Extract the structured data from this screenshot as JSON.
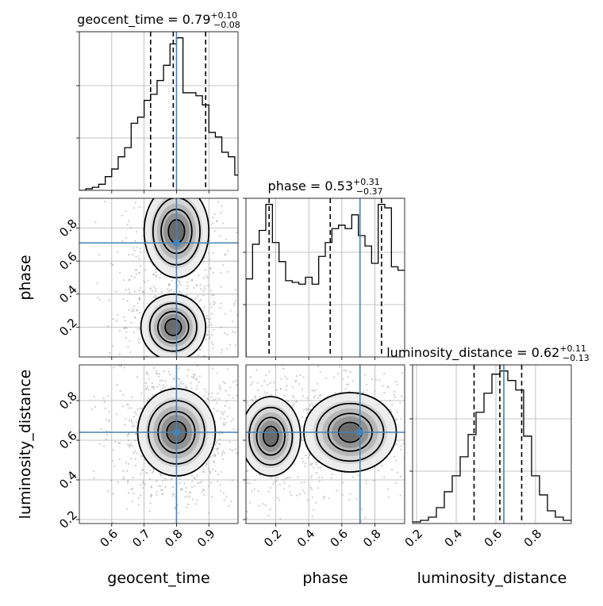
{
  "chart_data": {
    "type": "corner",
    "parameters": [
      "geocent_time",
      "phase",
      "luminosity_distance"
    ],
    "ranges": [
      [
        0.5,
        0.99
      ],
      [
        0.02,
        0.98
      ],
      [
        0.18,
        0.98
      ]
    ],
    "ticks": [
      [
        {
          "v": 0.6,
          "label": "0.6"
        },
        {
          "v": 0.7,
          "label": "0.7"
        },
        {
          "v": 0.8,
          "label": "0.8"
        },
        {
          "v": 0.9,
          "label": "0.9"
        }
      ],
      [
        {
          "v": 0.2,
          "label": "0.2"
        },
        {
          "v": 0.4,
          "label": "0.4"
        },
        {
          "v": 0.6,
          "label": "0.6"
        },
        {
          "v": 0.8,
          "label": "0.8"
        }
      ],
      [
        {
          "v": 0.2,
          "label": "0.2"
        },
        {
          "v": 0.4,
          "label": "0.4"
        },
        {
          "v": 0.6,
          "label": "0.6"
        },
        {
          "v": 0.8,
          "label": "0.8"
        }
      ]
    ],
    "truths": [
      0.8,
      0.71,
      0.64
    ],
    "titles": [
      {
        "name": "geocent_time",
        "median": "0.79",
        "plus": "+0.10",
        "minus": "−0.08",
        "quantiles": [
          0.72,
          0.79,
          0.89
        ]
      },
      {
        "name": "phase",
        "median": "0.53",
        "plus": "+0.31",
        "minus": "−0.37",
        "quantiles": [
          0.16,
          0.53,
          0.84
        ]
      },
      {
        "name": "luminosity_distance",
        "median": "0.62",
        "plus": "+0.11",
        "minus": "−0.13",
        "quantiles": [
          0.49,
          0.62,
          0.73
        ]
      }
    ],
    "histograms": [
      {
        "edges": [
          0.5,
          0.52,
          0.54,
          0.56,
          0.58,
          0.6,
          0.62,
          0.64,
          0.66,
          0.68,
          0.7,
          0.72,
          0.74,
          0.76,
          0.78,
          0.8,
          0.82,
          0.84,
          0.86,
          0.88,
          0.9,
          0.92,
          0.94,
          0.96,
          0.98,
          0.99
        ],
        "counts": [
          0.0,
          0.01,
          0.02,
          0.04,
          0.09,
          0.14,
          0.22,
          0.28,
          0.44,
          0.48,
          0.59,
          0.63,
          0.72,
          0.82,
          0.96,
          1.0,
          0.64,
          0.64,
          0.62,
          0.56,
          0.38,
          0.35,
          0.25,
          0.22,
          0.1
        ]
      },
      {
        "edges": [
          0.02,
          0.06,
          0.1,
          0.14,
          0.18,
          0.22,
          0.26,
          0.3,
          0.34,
          0.38,
          0.42,
          0.46,
          0.5,
          0.54,
          0.58,
          0.62,
          0.66,
          0.7,
          0.74,
          0.78,
          0.82,
          0.86,
          0.9,
          0.94,
          0.98
        ],
        "counts": [
          0.45,
          0.65,
          0.73,
          0.88,
          0.66,
          0.55,
          0.44,
          0.43,
          0.42,
          0.46,
          0.42,
          0.58,
          0.66,
          0.74,
          0.76,
          0.74,
          0.82,
          0.7,
          0.64,
          0.54,
          0.88,
          0.86,
          0.52,
          0.5
        ]
      },
      {
        "edges": [
          0.18,
          0.22,
          0.26,
          0.3,
          0.34,
          0.38,
          0.42,
          0.46,
          0.5,
          0.54,
          0.58,
          0.62,
          0.66,
          0.7,
          0.74,
          0.78,
          0.82,
          0.86,
          0.9,
          0.94,
          0.98
        ],
        "counts": [
          0.01,
          0.02,
          0.04,
          0.1,
          0.2,
          0.3,
          0.42,
          0.56,
          0.7,
          0.82,
          0.94,
          0.96,
          0.9,
          0.84,
          0.55,
          0.3,
          0.18,
          0.08,
          0.04,
          0.02
        ]
      }
    ],
    "joint_2d": [
      {
        "x_param": "geocent_time",
        "y_param": "phase",
        "modes": [
          [
            0.8,
            0.78,
            0.05,
            0.14
          ],
          [
            0.79,
            0.2,
            0.05,
            0.1
          ]
        ]
      },
      {
        "x_param": "geocent_time",
        "y_param": "luminosity_distance",
        "modes": [
          [
            0.8,
            0.64,
            0.06,
            0.11
          ]
        ]
      },
      {
        "x_param": "phase",
        "y_param": "luminosity_distance",
        "modes": [
          [
            0.17,
            0.62,
            0.09,
            0.1
          ],
          [
            0.65,
            0.64,
            0.14,
            0.1
          ]
        ]
      }
    ],
    "grid": true
  }
}
